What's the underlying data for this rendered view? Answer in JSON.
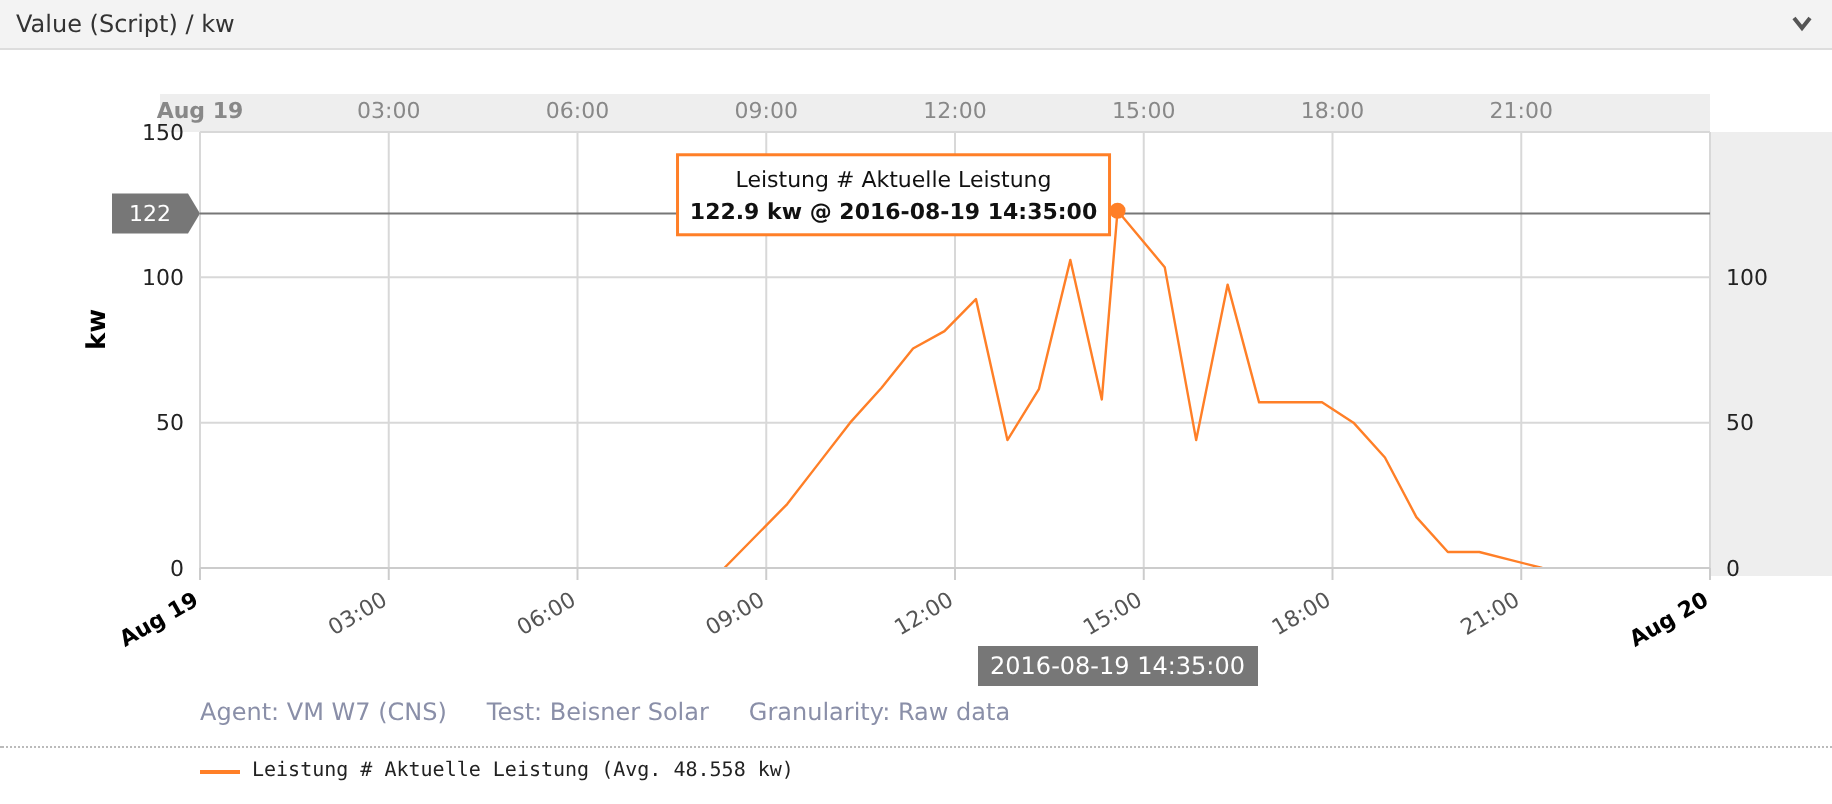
{
  "chart_data": {
    "type": "line",
    "title": "Value (Script) / kw",
    "ylabel": "kw",
    "x": [
      "2016-08-19T08:20",
      "2016-08-19T09:20",
      "2016-08-19T09:50",
      "2016-08-19T10:20",
      "2016-08-19T10:50",
      "2016-08-19T11:20",
      "2016-08-19T11:50",
      "2016-08-19T12:20",
      "2016-08-19T12:50",
      "2016-08-19T13:20",
      "2016-08-19T13:50",
      "2016-08-19T14:20",
      "2016-08-19T14:35",
      "2016-08-19T15:20",
      "2016-08-19T15:50",
      "2016-08-19T16:20",
      "2016-08-19T16:50",
      "2016-08-19T17:20",
      "2016-08-19T17:50",
      "2016-08-19T18:20",
      "2016-08-19T18:50",
      "2016-08-19T19:20",
      "2016-08-19T19:50",
      "2016-08-19T20:20",
      "2016-08-19T21:20"
    ],
    "series": [
      {
        "name": "Leistung # Aktuelle Leistung (Avg. 48.558 kw)",
        "color": "#ff7f27",
        "values": [
          0,
          22,
          36,
          50,
          62,
          75.5,
          81.5,
          92.5,
          44,
          61.5,
          106,
          58,
          122.9,
          103.5,
          44,
          97.5,
          57,
          57,
          57,
          50,
          38,
          17.5,
          5.5,
          5.5,
          0
        ]
      }
    ],
    "xlim": [
      "2016-08-19T00:00",
      "2016-08-20T00:00"
    ],
    "xticks": [
      {
        "value": "2016-08-19T00:00",
        "label": "Aug 19"
      },
      {
        "value": "2016-08-19T03:00",
        "label": "03:00"
      },
      {
        "value": "2016-08-19T06:00",
        "label": "06:00"
      },
      {
        "value": "2016-08-19T09:00",
        "label": "09:00"
      },
      {
        "value": "2016-08-19T12:00",
        "label": "12:00"
      },
      {
        "value": "2016-08-19T15:00",
        "label": "15:00"
      },
      {
        "value": "2016-08-19T18:00",
        "label": "18:00"
      },
      {
        "value": "2016-08-19T21:00",
        "label": "21:00"
      },
      {
        "value": "2016-08-20T00:00",
        "label": "Aug 20"
      }
    ],
    "x2lim": [
      "2016-08-19T00:00",
      "2016-08-20T00:00"
    ],
    "x2ticks": [
      {
        "value": "2016-08-19T00:00",
        "label": "Aug 19"
      },
      {
        "value": "2016-08-19T03:00",
        "label": "03:00"
      },
      {
        "value": "2016-08-19T06:00",
        "label": "06:00"
      },
      {
        "value": "2016-08-19T09:00",
        "label": "09:00"
      },
      {
        "value": "2016-08-19T12:00",
        "label": "12:00"
      },
      {
        "value": "2016-08-19T15:00",
        "label": "15:00"
      },
      {
        "value": "2016-08-19T18:00",
        "label": "18:00"
      },
      {
        "value": "2016-08-19T21:00",
        "label": "21:00"
      }
    ],
    "ylim": [
      0,
      150
    ],
    "yticks": [
      0,
      50,
      100,
      150
    ],
    "y2lim": [
      0,
      150
    ],
    "y2ticks": [
      0,
      50,
      100
    ],
    "ref_lines": [
      {
        "axis": "y",
        "value": 122,
        "label": "122",
        "color": "#777777"
      }
    ],
    "annotations": [
      {
        "text": "Leistung # Aktuelle Leistung\n122.9 kw @ 2016-08-19 14:35:00",
        "x": "2016-08-19T14:35",
        "y": 122.9
      },
      "2016-08-19 14:35:00",
      "Agent: VM W7 (CNS)",
      "Test: Beisner Solar",
      "Granularity: Raw data"
    ],
    "grid": true,
    "legend": "bottom",
    "marker": "none",
    "line_style": "solid"
  }
}
